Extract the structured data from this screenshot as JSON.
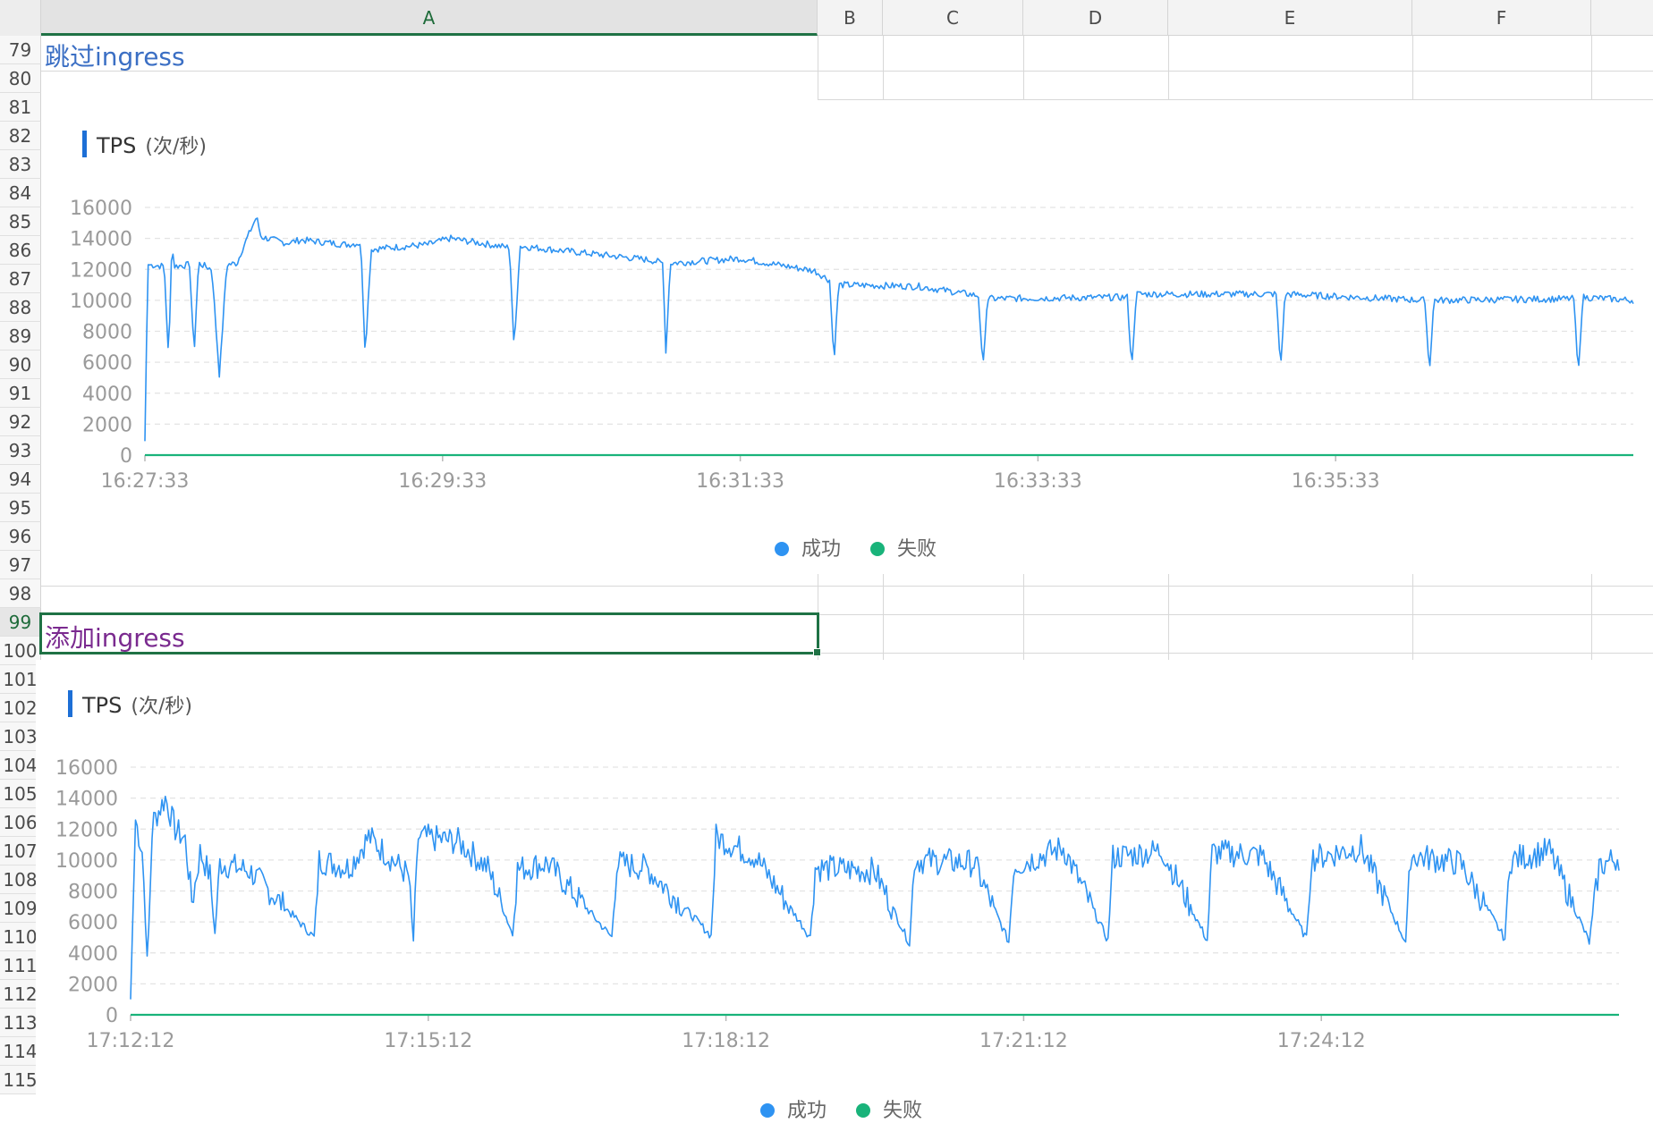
{
  "columns": [
    {
      "label": "A",
      "selected": true
    },
    {
      "label": "B",
      "selected": false
    },
    {
      "label": "C",
      "selected": false
    },
    {
      "label": "D",
      "selected": false
    },
    {
      "label": "E",
      "selected": false
    },
    {
      "label": "F",
      "selected": false
    }
  ],
  "rows": [
    "79",
    "80",
    "81",
    "82",
    "83",
    "84",
    "85",
    "86",
    "87",
    "88",
    "89",
    "90",
    "91",
    "92",
    "93",
    "94",
    "95",
    "96",
    "97",
    "98",
    "99",
    "100",
    "101",
    "102",
    "103",
    "104",
    "105",
    "106",
    "107",
    "108",
    "109",
    "110",
    "111",
    "112",
    "113",
    "114",
    "115"
  ],
  "selected_row": "99",
  "cells": {
    "a79": "跳过ingress",
    "a99": "添加ingress"
  },
  "colors": {
    "success": "#2e93f2",
    "failure": "#19b37a",
    "title_bar": "#1d6fd6",
    "cell_a79": "#3b6fc4",
    "cell_a99": "#7a2a8f",
    "selection": "#1f7245"
  },
  "chart_data": [
    {
      "type": "line",
      "title": "TPS",
      "unit": "(次/秒)",
      "yticks": [
        "16000",
        "14000",
        "12000",
        "10000",
        "8000",
        "6000",
        "4000",
        "2000",
        "0"
      ],
      "ylim": [
        0,
        16000
      ],
      "xticks": [
        "16:27:33",
        "16:29:33",
        "16:31:33",
        "16:33:33",
        "16:35:33"
      ],
      "x_domain_minutes": [
        0,
        10
      ],
      "grid": true,
      "legend": [
        "成功",
        "失败"
      ],
      "legend_position": "bottom-center",
      "series": [
        {
          "name": "成功",
          "anchor_points": [
            [
              0,
              900
            ],
            [
              0.02,
              12300
            ],
            [
              0.13,
              12200
            ],
            [
              0.16,
              6000
            ],
            [
              0.18,
              13600
            ],
            [
              0.2,
              12200
            ],
            [
              0.3,
              12300
            ],
            [
              0.33,
              6500
            ],
            [
              0.36,
              12400
            ],
            [
              0.45,
              12000
            ],
            [
              0.5,
              5100
            ],
            [
              0.55,
              12300
            ],
            [
              0.62,
              12400
            ],
            [
              0.65,
              13200
            ],
            [
              0.75,
              15400
            ],
            [
              0.78,
              14100
            ],
            [
              0.95,
              13700
            ],
            [
              1.05,
              13900
            ],
            [
              1.35,
              13600
            ],
            [
              1.45,
              13700
            ],
            [
              1.48,
              6600
            ],
            [
              1.52,
              13300
            ],
            [
              1.9,
              13600
            ],
            [
              2.05,
              14000
            ],
            [
              2.45,
              13400
            ],
            [
              2.48,
              6800
            ],
            [
              2.52,
              13500
            ],
            [
              3.4,
              12600
            ],
            [
              3.48,
              12400
            ],
            [
              3.5,
              6600
            ],
            [
              3.53,
              12400
            ],
            [
              4.0,
              12700
            ],
            [
              4.5,
              11900
            ],
            [
              4.6,
              11300
            ],
            [
              4.63,
              6000
            ],
            [
              4.66,
              11000
            ],
            [
              5.2,
              10900
            ],
            [
              5.6,
              10300
            ],
            [
              5.63,
              5600
            ],
            [
              5.66,
              10100
            ],
            [
              6.6,
              10200
            ],
            [
              6.63,
              5600
            ],
            [
              6.66,
              10400
            ],
            [
              7.6,
              10400
            ],
            [
              7.63,
              5600
            ],
            [
              7.66,
              10400
            ],
            [
              8.6,
              10000
            ],
            [
              8.63,
              5300
            ],
            [
              8.66,
              10000
            ],
            [
              9.6,
              10100
            ],
            [
              9.63,
              5200
            ],
            [
              9.66,
              10200
            ],
            [
              10.0,
              10000
            ]
          ],
          "noise_amplitude": 220
        },
        {
          "name": "失败",
          "values_constant": 0
        }
      ]
    },
    {
      "type": "line",
      "title": "TPS",
      "unit": "(次/秒)",
      "yticks": [
        "16000",
        "14000",
        "12000",
        "10000",
        "8000",
        "6000",
        "4000",
        "2000",
        "0"
      ],
      "ylim": [
        0,
        16000
      ],
      "xticks": [
        "17:12:12",
        "17:15:12",
        "17:18:12",
        "17:21:12",
        "17:24:12"
      ],
      "x_domain_minutes": [
        0,
        15
      ],
      "grid": true,
      "legend": [
        "成功",
        "失败"
      ],
      "legend_position": "bottom-center",
      "series": [
        {
          "name": "成功",
          "anchor_points": [
            [
              0,
              1000
            ],
            [
              0.05,
              12600
            ],
            [
              0.12,
              10500
            ],
            [
              0.17,
              3100
            ],
            [
              0.22,
              12400
            ],
            [
              0.35,
              14000
            ],
            [
              0.45,
              12000
            ],
            [
              0.55,
              11300
            ],
            [
              0.62,
              7200
            ],
            [
              0.7,
              10500
            ],
            [
              0.8,
              9000
            ],
            [
              0.85,
              5200
            ],
            [
              0.9,
              9800
            ],
            [
              1.2,
              9300
            ],
            [
              1.85,
              5000
            ],
            [
              1.9,
              10000
            ],
            [
              2.2,
              9500
            ],
            [
              2.4,
              11500
            ],
            [
              2.8,
              9000
            ],
            [
              2.85,
              4800
            ],
            [
              2.9,
              11500
            ],
            [
              3.3,
              11200
            ],
            [
              3.6,
              9500
            ],
            [
              3.85,
              5200
            ],
            [
              3.9,
              9400
            ],
            [
              4.2,
              9800
            ],
            [
              4.85,
              5000
            ],
            [
              4.9,
              9800
            ],
            [
              5.2,
              9500
            ],
            [
              5.85,
              5100
            ],
            [
              5.9,
              11500
            ],
            [
              6.3,
              10200
            ],
            [
              6.85,
              5000
            ],
            [
              6.9,
              9500
            ],
            [
              7.5,
              9300
            ],
            [
              7.85,
              4600
            ],
            [
              7.9,
              10000
            ],
            [
              8.5,
              9800
            ],
            [
              8.85,
              4700
            ],
            [
              8.9,
              9600
            ],
            [
              9.4,
              10800
            ],
            [
              9.85,
              4800
            ],
            [
              9.9,
              10200
            ],
            [
              10.4,
              10600
            ],
            [
              10.85,
              4800
            ],
            [
              10.9,
              10500
            ],
            [
              11.4,
              10300
            ],
            [
              11.85,
              4900
            ],
            [
              11.9,
              10100
            ],
            [
              12.4,
              10800
            ],
            [
              12.85,
              4700
            ],
            [
              12.9,
              10300
            ],
            [
              13.4,
              9800
            ],
            [
              13.85,
              4900
            ],
            [
              13.9,
              10000
            ],
            [
              14.3,
              10600
            ],
            [
              14.7,
              4700
            ],
            [
              14.8,
              9600
            ],
            [
              15.0,
              10200
            ]
          ],
          "noise_amplitude": 900
        },
        {
          "name": "失败",
          "values_constant": 0
        }
      ]
    }
  ]
}
